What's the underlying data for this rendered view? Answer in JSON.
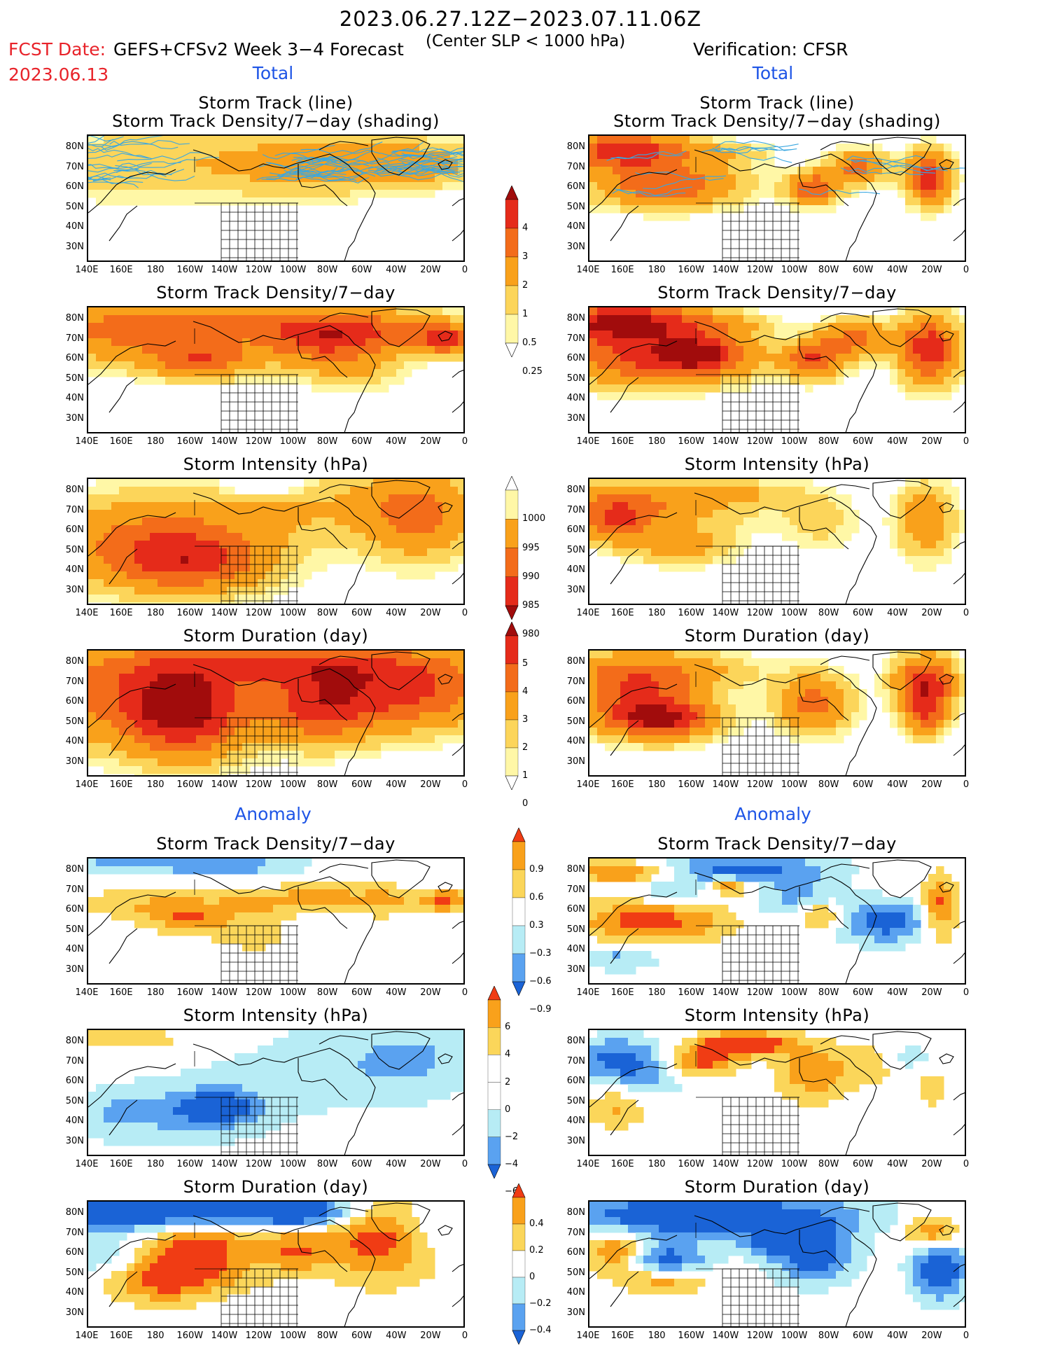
{
  "header": {
    "title": "2023.06.27.12Z−2023.07.11.06Z",
    "fcst_label": "FCST Date:",
    "fcst_date": "2023.06.13",
    "forecast_label": "GEFS+CFSv2 Week 3−4 Forecast",
    "criterion": "(Center SLP < 1000 hPa)",
    "verification": "Verification: CFSR"
  },
  "sections": {
    "total_left": "Total",
    "total_right": "Total",
    "anomaly_left": "Anomaly",
    "anomaly_right": "Anomaly"
  },
  "panel_titles": {
    "track_line": "Storm Track (line)",
    "track_density_shading": "Storm Track Density/7−day (shading)",
    "track_density": "Storm Track Density/7−day",
    "intensity": "Storm Intensity (hPa)",
    "duration": "Storm Duration (day)"
  },
  "axes": {
    "lat_labels": [
      "80N",
      "70N",
      "60N",
      "50N",
      "40N",
      "30N"
    ],
    "lon_labels": [
      "140E",
      "160E",
      "180",
      "160W",
      "140W",
      "120W",
      "100W",
      "80W",
      "60W",
      "40W",
      "20W",
      "0"
    ]
  },
  "colorbars": {
    "density_total": [
      "4",
      "3",
      "2",
      "1",
      "0.5",
      "0.25"
    ],
    "intensity_total": [
      "1000",
      "995",
      "990",
      "985",
      "980"
    ],
    "duration_total": [
      "5",
      "4",
      "3",
      "2",
      "1",
      "0"
    ],
    "density_anom": [
      "0.9",
      "0.6",
      "0.3",
      "−0.3",
      "−0.6",
      "−0.9"
    ],
    "intensity_anom": [
      "6",
      "4",
      "2",
      "0",
      "−2",
      "−4",
      "−6"
    ],
    "duration_anom": [
      "0.4",
      "0.2",
      "0",
      "−0.2",
      "−0.4"
    ]
  },
  "colors": {
    "red_title": "#e8232a",
    "blue_heading": "#1e55e6",
    "track_line": "#3aa7e0",
    "warm_scale": [
      "#fff7a6",
      "#fcd55a",
      "#f9a11b",
      "#f36c1a",
      "#e52b1a",
      "#a10c0c"
    ],
    "diverging_scale": [
      "#1a63d6",
      "#5aa2f0",
      "#b7ecf5",
      "#ffffff",
      "#fbd65a",
      "#f9a11b",
      "#f03c14"
    ]
  }
}
